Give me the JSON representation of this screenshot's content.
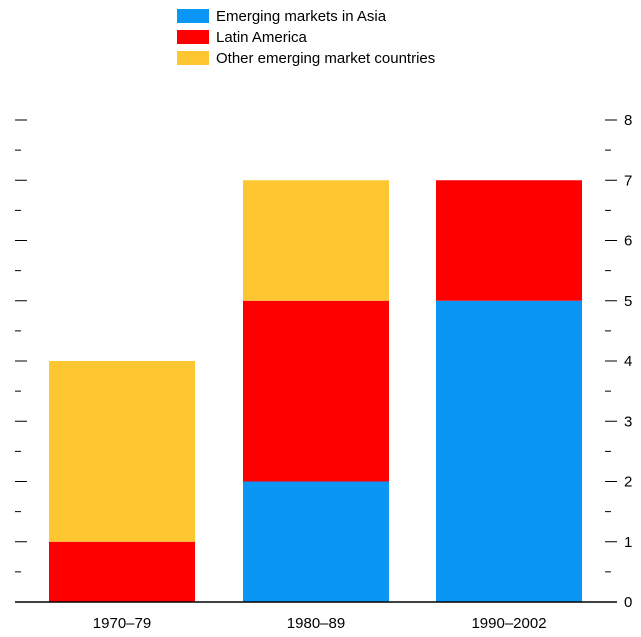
{
  "chart_data": {
    "type": "bar",
    "stacked": true,
    "categories": [
      "1970–79",
      "1980–89",
      "1990–2002"
    ],
    "series": [
      {
        "name": "Emerging markets in Asia",
        "color": "#0a96f5",
        "values": [
          0,
          2,
          5
        ]
      },
      {
        "name": "Latin America",
        "color": "#ff0000",
        "values": [
          1,
          3,
          2
        ]
      },
      {
        "name": "Other emerging market countries",
        "color": "#fec630",
        "values": [
          3,
          2,
          0
        ]
      }
    ],
    "y_ticks": [
      "0",
      "1",
      "2",
      "3",
      "4",
      "5",
      "6",
      "7",
      "8"
    ],
    "ylim": [
      0,
      8
    ],
    "legend_position": "top-center",
    "y_axis_side": "right",
    "grid": false
  }
}
